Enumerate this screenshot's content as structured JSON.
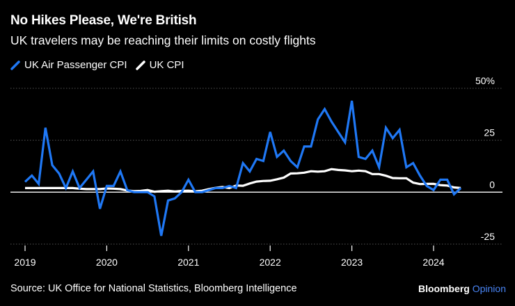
{
  "title": "No Hikes Please, We're British",
  "subtitle": "UK travelers may be reaching their limits on costly flights",
  "legend": [
    {
      "label": "UK Air Passenger CPI",
      "color": "#1f78f5"
    },
    {
      "label": "UK CPI",
      "color": "#ffffff"
    }
  ],
  "source": "Source: UK Office for National Statistics, Bloomberg Intelligence",
  "brand": {
    "name": "Bloomberg",
    "suffix": "Opinion",
    "accent_color": "#4a86f7"
  },
  "chart_data": {
    "type": "line",
    "title": "No Hikes Please, We're British",
    "xlabel": "",
    "ylabel": "",
    "ylim": [
      -25,
      50
    ],
    "y_ticks": [
      {
        "value": 50,
        "label": "50%"
      },
      {
        "value": 25,
        "label": "25"
      },
      {
        "value": 0,
        "label": "0"
      },
      {
        "value": -25,
        "label": "-25"
      }
    ],
    "x_ticks": [
      {
        "value": 2019.0,
        "label": "2019"
      },
      {
        "value": 2020.0,
        "label": "2020"
      },
      {
        "value": 2021.0,
        "label": "2021"
      },
      {
        "value": 2022.0,
        "label": "2022"
      },
      {
        "value": 2023.0,
        "label": "2023"
      },
      {
        "value": 2024.0,
        "label": "2024"
      }
    ],
    "x_start": 2019.0,
    "x_step_months": 1,
    "series": [
      {
        "name": "UK Air Passenger CPI",
        "color": "#1f78f5",
        "values": [
          5,
          8,
          4,
          31,
          13,
          9,
          2,
          10,
          2,
          6,
          10,
          -8,
          3,
          3,
          10,
          1,
          0,
          0,
          0,
          -2,
          -21,
          -4,
          -3,
          0,
          6,
          0,
          0,
          1,
          2,
          2,
          3,
          2,
          14,
          10,
          16,
          15,
          29,
          17,
          20,
          15,
          12,
          22,
          22,
          35,
          40,
          34,
          29,
          24,
          44,
          17,
          16,
          20,
          12,
          31,
          26,
          30,
          12,
          14,
          8,
          3,
          1,
          6,
          6,
          -1,
          2
        ]
      },
      {
        "name": "UK CPI",
        "color": "#ffffff",
        "values": [
          2,
          2,
          2,
          2,
          2,
          2,
          2,
          2,
          1.7,
          1.5,
          1.5,
          1.5,
          1.8,
          1.7,
          1.5,
          0.8,
          0.5,
          0.6,
          1,
          0.2,
          0.5,
          0.7,
          0.3,
          0.6,
          0.7,
          0.4,
          0.7,
          1.5,
          2.1,
          2.5,
          2,
          3.2,
          3.1,
          4.2,
          5.1,
          5.4,
          5.5,
          6.2,
          7,
          9,
          9.1,
          9.4,
          10.1,
          9.9,
          10.1,
          11.1,
          10.7,
          10.5,
          10.1,
          10.4,
          10.1,
          8.7,
          8.7,
          7.9,
          6.8,
          6.7,
          6.7,
          4.6,
          3.9,
          4,
          4,
          3.4,
          3.2,
          2.3,
          2
        ]
      }
    ]
  }
}
